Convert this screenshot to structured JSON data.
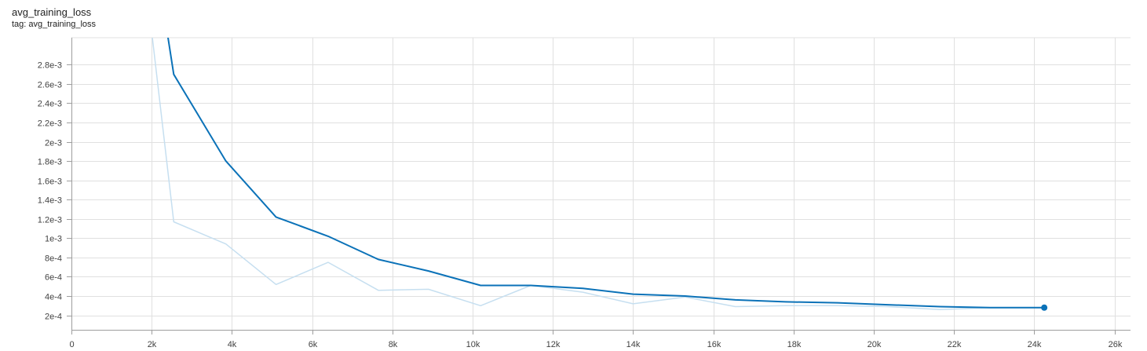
{
  "card": {
    "title": "avg_training_loss",
    "tag": "tag: avg_training_loss"
  },
  "chart_data": {
    "type": "line",
    "title": "avg_training_loss",
    "xlabel": "",
    "ylabel": "",
    "xlim": [
      0,
      26400
    ],
    "ylim": [
      5e-05,
      0.00308
    ],
    "grid": true,
    "x_ticks": [
      0,
      2000,
      4000,
      6000,
      8000,
      10000,
      12000,
      14000,
      16000,
      18000,
      20000,
      22000,
      24000,
      26000
    ],
    "x_tick_labels": [
      "0",
      "2k",
      "4k",
      "6k",
      "8k",
      "10k",
      "12k",
      "14k",
      "16k",
      "18k",
      "20k",
      "22k",
      "24k",
      "26k"
    ],
    "y_ticks": [
      0.0002,
      0.0004,
      0.0006,
      0.0008,
      0.001,
      0.0012,
      0.0014,
      0.0016,
      0.0018,
      0.002,
      0.0022,
      0.0024,
      0.0026,
      0.0028
    ],
    "y_tick_labels": [
      "2e-4",
      "4e-4",
      "6e-4",
      "8e-4",
      "1e-3",
      "1.2e-3",
      "1.4e-3",
      "1.6e-3",
      "1.8e-3",
      "2e-3",
      "2.2e-3",
      "2.4e-3",
      "2.6e-3",
      "2.8e-3"
    ],
    "colors": {
      "smoothed": "#0b72b8",
      "raw": "#c6dff0",
      "grid": "#e0e0e0",
      "axis": "#9e9e9e"
    },
    "series": [
      {
        "role": "raw",
        "x": [
          1900,
          2550,
          3850,
          5100,
          6400,
          7650,
          8900,
          10200,
          11450,
          12750,
          14000,
          15300,
          16550,
          17800,
          19100,
          20350,
          21650,
          22900,
          24250
        ],
        "values": [
          0.0035,
          0.00117,
          0.00094,
          0.00052,
          0.00075,
          0.00046,
          0.00047,
          0.0003,
          0.00051,
          0.00044,
          0.00032,
          0.00039,
          0.00029,
          0.0003,
          0.0003,
          0.00029,
          0.00026,
          0.00028,
          0.00028
        ]
      },
      {
        "role": "smoothed",
        "x": [
          2250,
          2550,
          3850,
          5100,
          6400,
          7650,
          8900,
          10200,
          11450,
          12750,
          14000,
          15300,
          16550,
          17800,
          19100,
          20350,
          21650,
          22900,
          24250
        ],
        "values": [
          0.0035,
          0.0027,
          0.0018,
          0.00122,
          0.00102,
          0.00078,
          0.00066,
          0.00051,
          0.00051,
          0.00048,
          0.00042,
          0.0004,
          0.00036,
          0.00034,
          0.00033,
          0.00031,
          0.00029,
          0.00028,
          0.00028
        ]
      }
    ]
  }
}
